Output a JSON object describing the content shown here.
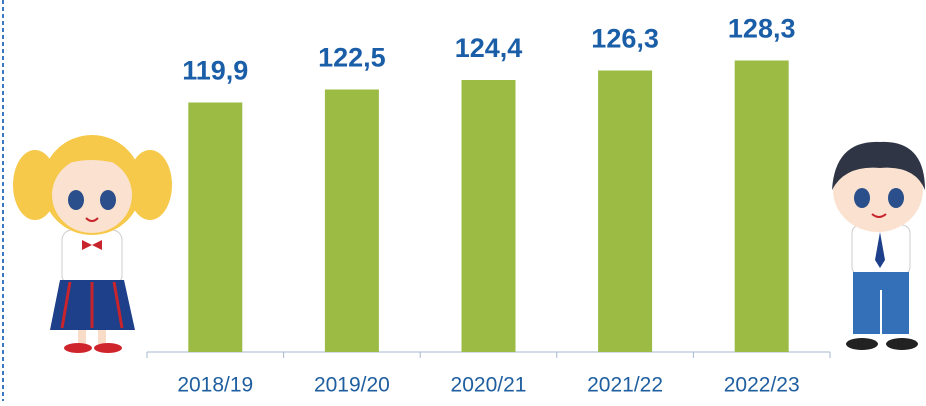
{
  "chart_data": {
    "type": "bar",
    "categories": [
      "2018/19",
      "2019/20",
      "2020/21",
      "2021/22",
      "2022/23"
    ],
    "values": [
      119.9,
      122.5,
      124.4,
      126.3,
      128.3
    ],
    "value_labels": [
      "119,9",
      "122,5",
      "124,4",
      "126,3",
      "128,3"
    ],
    "color": "#9bbb45",
    "ylim": [
      70,
      130
    ]
  }
}
